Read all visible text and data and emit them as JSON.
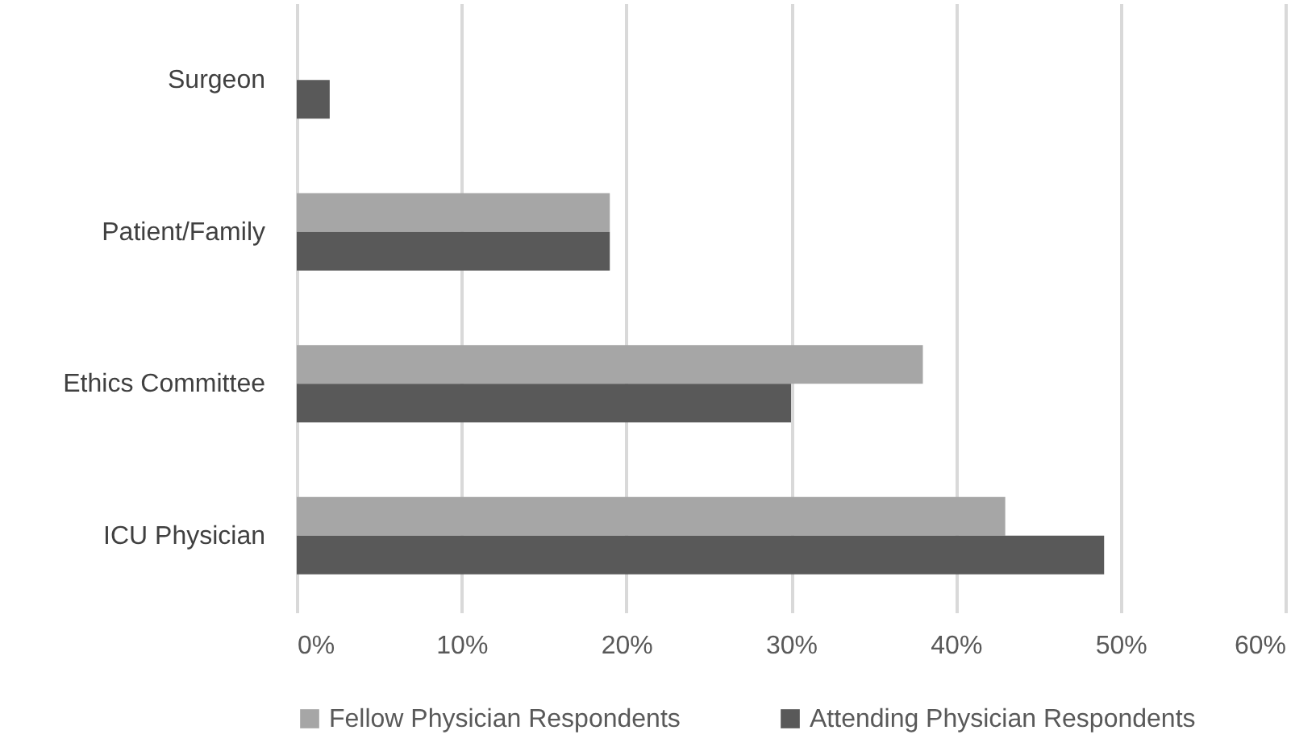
{
  "chart_data": {
    "type": "bar",
    "orientation": "horizontal",
    "categories": [
      "Surgeon",
      "Patient/Family",
      "Ethics Committee",
      "ICU Physician"
    ],
    "series": [
      {
        "name": "Fellow Physician Respondents",
        "color": "#a6a6a6",
        "values": [
          0,
          19,
          38,
          43
        ]
      },
      {
        "name": "Attending Physician Respondents",
        "color": "#595959",
        "values": [
          2,
          19,
          30,
          49
        ]
      }
    ],
    "xlim": [
      0,
      60
    ],
    "xticks": [
      {
        "value": 0,
        "label": "0%"
      },
      {
        "value": 10,
        "label": "10%"
      },
      {
        "value": 20,
        "label": "20%"
      },
      {
        "value": 30,
        "label": "30%"
      },
      {
        "value": 40,
        "label": "40%"
      },
      {
        "value": 50,
        "label": "50%"
      },
      {
        "value": 60,
        "label": "60%"
      }
    ],
    "grid": "x",
    "legend": "bottom"
  }
}
